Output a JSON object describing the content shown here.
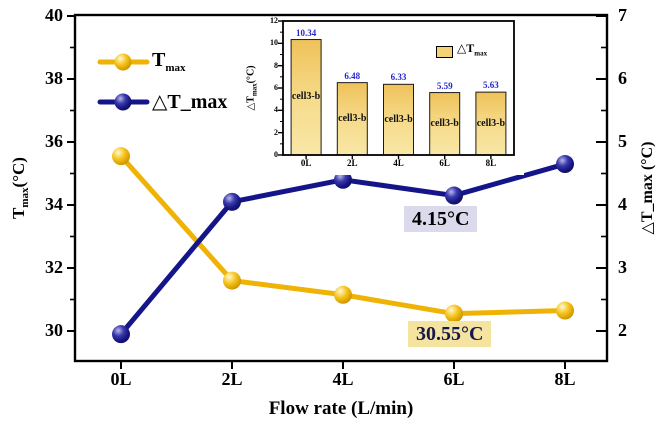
{
  "x_axis": {
    "title": "Flow rate (L/min)",
    "ticks": [
      "0L",
      "2L",
      "4L",
      "6L",
      "8L"
    ]
  },
  "left_axis": {
    "label_base": "T",
    "label_sub": "max",
    "label_unit": "(°C)",
    "ticks": [
      "40",
      "38",
      "36",
      "34",
      "32",
      "30"
    ]
  },
  "right_axis": {
    "label": "△T_max (°C)",
    "ticks": [
      "7",
      "6",
      "5",
      "4",
      "3",
      "2"
    ]
  },
  "legend": {
    "tmax": {
      "base": "T",
      "sub": "max"
    },
    "dtmax": "△T_max"
  },
  "annotations": {
    "delta": "4.15°C",
    "tmax": "30.55°C"
  },
  "colors": {
    "gold": "#efb306",
    "navy": "#15158a",
    "bar_top": "#efc25a",
    "bar_bottom": "#faebb0",
    "value_label": "#2526ce",
    "anno_delta_bg": "#dbdaec",
    "anno_tmax_bg": "#f5e4a0",
    "anno_tmax_text": "#17174f",
    "frame": "#000000"
  },
  "inset": {
    "y_label_base": "△T",
    "y_label_sub": "max",
    "y_label_unit": "(°C)",
    "y_ticks": [
      "12",
      "10",
      "8",
      "6",
      "4",
      "2",
      "0"
    ],
    "x_ticks": [
      "0L",
      "2L",
      "4L",
      "6L",
      "8L"
    ],
    "legend": {
      "base": "△T",
      "sub": "max"
    },
    "bar_value_labels": [
      "10.34",
      "6.48",
      "6.33",
      "5.59",
      "5.63"
    ],
    "cell_label": "cell3-b"
  },
  "chart_data": [
    {
      "type": "line",
      "xlabel": "Flow rate (L/min)",
      "categories": [
        "0L",
        "2L",
        "4L",
        "6L",
        "8L"
      ],
      "series": [
        {
          "name": "T_max",
          "axis": "left",
          "color": "#efb306",
          "values": [
            35.55,
            31.6,
            31.15,
            30.55,
            30.65
          ]
        },
        {
          "name": "△T_max",
          "axis": "right",
          "color": "#15158a",
          "values": [
            1.95,
            4.05,
            4.4,
            4.15,
            4.65
          ]
        }
      ],
      "left_ylabel": "T_max(°C)",
      "right_ylabel": "△T_max (°C)",
      "left_ylim": [
        29,
        40
      ],
      "right_ylim": [
        1.5,
        7
      ],
      "left_yticks": [
        40,
        38,
        36,
        34,
        32,
        30
      ],
      "left_yticks_minor": [
        39,
        37,
        35,
        33,
        31
      ],
      "right_yticks": [
        7,
        6,
        5,
        4,
        3,
        2
      ],
      "right_yticks_minor": [
        6.5,
        5.5,
        4.5,
        3.5,
        2.5
      ],
      "grid": false,
      "legend_position": "upper-left",
      "annotations": [
        {
          "text": "4.15°C",
          "series": "△T_max",
          "category": "6L",
          "value": 4.15
        },
        {
          "text": "30.55°C",
          "series": "T_max",
          "category": "6L",
          "value": 30.55
        }
      ]
    },
    {
      "type": "bar",
      "ylabel": "△T_max(°C)",
      "categories": [
        "0L",
        "2L",
        "4L",
        "6L",
        "8L"
      ],
      "values": [
        10.34,
        6.48,
        6.33,
        5.59,
        5.63
      ],
      "bar_inner_label": "cell3-b",
      "ylim": [
        0,
        12
      ],
      "yticks": [
        12,
        10,
        8,
        6,
        4,
        2,
        0
      ],
      "yticks_minor": [
        11,
        9,
        7,
        5,
        3,
        1
      ],
      "legend_entry": "△T_max",
      "legend_position": "upper-right"
    }
  ]
}
